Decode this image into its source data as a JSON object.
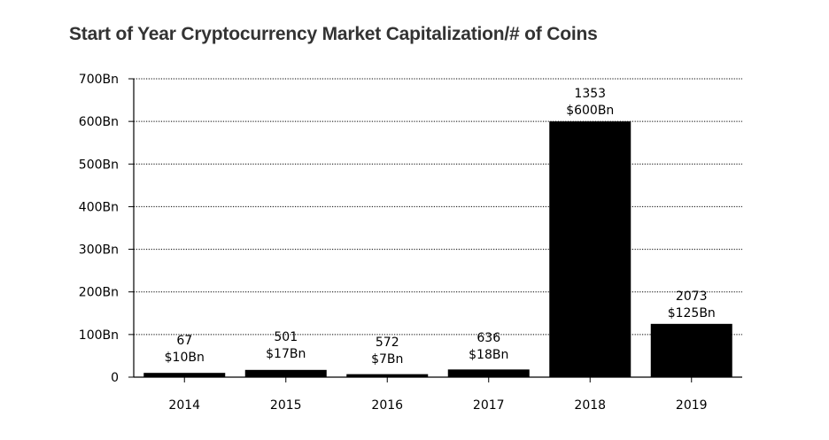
{
  "chart_data": {
    "type": "bar",
    "title": "Start of Year Cryptocurrency Market Capitalization/# of Coins",
    "xlabel": "",
    "ylabel": "",
    "categories": [
      "2014",
      "2015",
      "2016",
      "2017",
      "2018",
      "2019"
    ],
    "values": [
      10,
      17,
      7,
      18,
      600,
      125
    ],
    "value_unit": "Bn",
    "coin_counts": [
      "67",
      "501",
      "572",
      "636",
      "1353",
      "2073"
    ],
    "value_labels": [
      "$10Bn",
      "$17Bn",
      "$7Bn",
      "$18Bn",
      "$600Bn",
      "$125Bn"
    ],
    "yticks": [
      0,
      100,
      200,
      300,
      400,
      500,
      600,
      700
    ],
    "ytick_labels": [
      "0",
      "100Bn",
      "200Bn",
      "300Bn",
      "400Bn",
      "500Bn",
      "600Bn",
      "700Bn"
    ],
    "ylim": [
      0,
      700
    ],
    "grid": "horizontal-dotted",
    "bar_color": "#000000",
    "grid_color": "#000000"
  }
}
